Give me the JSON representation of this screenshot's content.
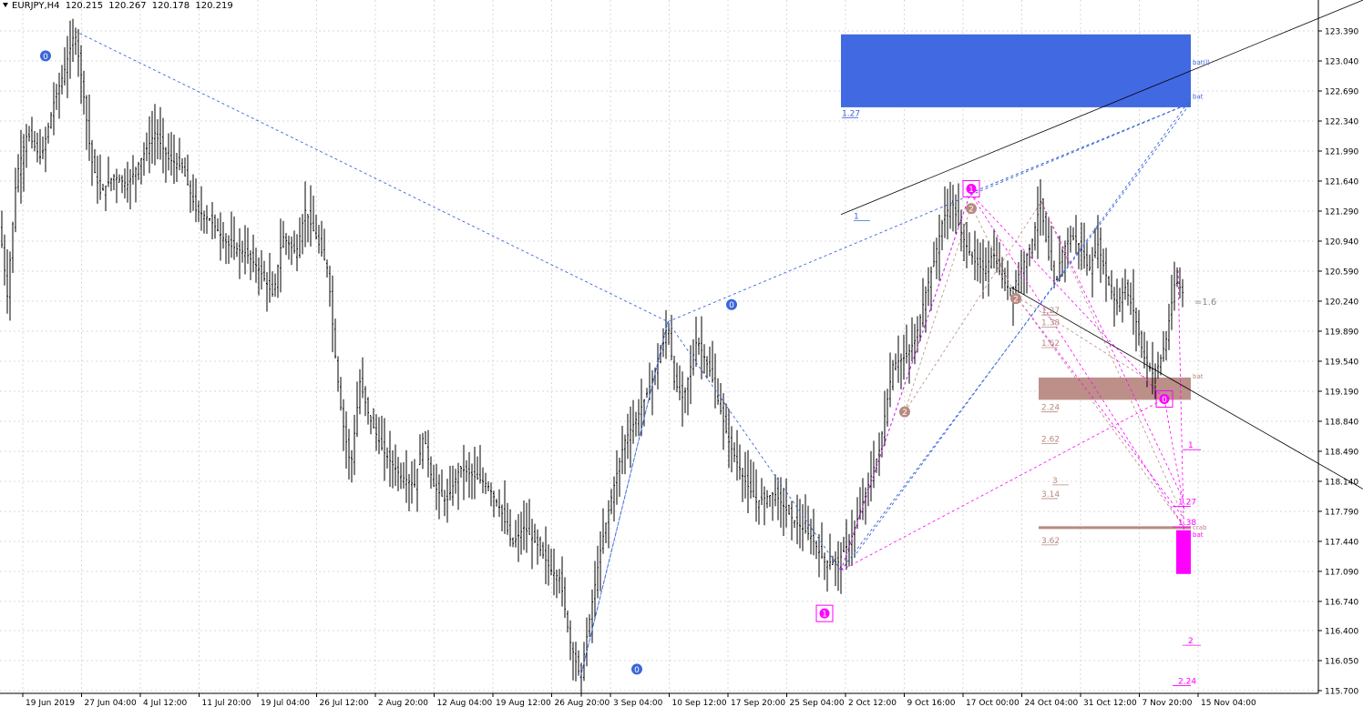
{
  "header": {
    "symbol": "EURJPY,H4",
    "open": "120.215",
    "high": "120.267",
    "low": "120.178",
    "close": "120.219"
  },
  "chart_data": {
    "type": "candlestick",
    "symbol": "EURJPY",
    "timeframe": "H4",
    "ylim": [
      115.7,
      123.5
    ],
    "price_ticks": [
      "123.390",
      "123.040",
      "122.690",
      "122.340",
      "121.990",
      "121.640",
      "121.290",
      "120.940",
      "120.590",
      "120.240",
      "119.890",
      "119.540",
      "119.190",
      "118.840",
      "118.490",
      "118.140",
      "117.790",
      "117.440",
      "117.090",
      "116.740",
      "116.400",
      "116.050",
      "115.700"
    ],
    "time_labels": [
      "19 Jun 2019",
      "27 Jun 04:00",
      "4 Jul 12:00",
      "11 Jul 20:00",
      "19 Jul 04:00",
      "26 Jul 12:00",
      "2 Aug 20:00",
      "12 Aug 04:00",
      "19 Aug 12:00",
      "26 Aug 20:00",
      "3 Sep 04:00",
      "10 Sep 12:00",
      "17 Sep 20:00",
      "25 Sep 04:00",
      "2 Oct 12:00",
      "9 Oct 16:00",
      "17 Oct 00:00",
      "24 Oct 04:00",
      "31 Oct 12:00",
      "7 Nov 20:00",
      "15 Nov 04:00"
    ],
    "price_path": [
      [
        0,
        121.1
      ],
      [
        8,
        120.3
      ],
      [
        18,
        121.7
      ],
      [
        30,
        122.2
      ],
      [
        45,
        121.9
      ],
      [
        60,
        122.6
      ],
      [
        70,
        122.9
      ],
      [
        82,
        123.39
      ],
      [
        90,
        122.8
      ],
      [
        100,
        121.9
      ],
      [
        110,
        121.5
      ],
      [
        125,
        121.7
      ],
      [
        140,
        121.6
      ],
      [
        155,
        121.9
      ],
      [
        170,
        122.2
      ],
      [
        185,
        121.9
      ],
      [
        200,
        121.8
      ],
      [
        215,
        121.3
      ],
      [
        230,
        121.2
      ],
      [
        250,
        120.9
      ],
      [
        270,
        120.8
      ],
      [
        285,
        120.6
      ],
      [
        300,
        120.3
      ],
      [
        310,
        121.0
      ],
      [
        325,
        120.8
      ],
      [
        335,
        121.3
      ],
      [
        350,
        120.9
      ],
      [
        360,
        120.6
      ],
      [
        368,
        119.6
      ],
      [
        375,
        118.9
      ],
      [
        385,
        118.3
      ],
      [
        395,
        119.3
      ],
      [
        405,
        118.9
      ],
      [
        420,
        118.5
      ],
      [
        440,
        118.2
      ],
      [
        455,
        118.1
      ],
      [
        465,
        118.7
      ],
      [
        475,
        118.1
      ],
      [
        490,
        117.9
      ],
      [
        505,
        118.3
      ],
      [
        520,
        118.2
      ],
      [
        535,
        118.1
      ],
      [
        550,
        117.8
      ],
      [
        562,
        117.4
      ],
      [
        575,
        117.6
      ],
      [
        590,
        117.4
      ],
      [
        605,
        117.1
      ],
      [
        615,
        117.0
      ],
      [
        625,
        116.3
      ],
      [
        637,
        115.85
      ],
      [
        648,
        116.6
      ],
      [
        660,
        117.4
      ],
      [
        672,
        118.0
      ],
      [
        685,
        118.6
      ],
      [
        700,
        118.9
      ],
      [
        715,
        119.3
      ],
      [
        727,
        119.7
      ],
      [
        733,
        120.0
      ],
      [
        740,
        119.3
      ],
      [
        750,
        119.1
      ],
      [
        765,
        119.8
      ],
      [
        780,
        119.4
      ],
      [
        790,
        119.0
      ],
      [
        800,
        118.6
      ],
      [
        815,
        118.2
      ],
      [
        830,
        117.9
      ],
      [
        850,
        118.0
      ],
      [
        870,
        117.7
      ],
      [
        890,
        117.5
      ],
      [
        905,
        117.2
      ],
      [
        920,
        117.2
      ],
      [
        935,
        117.5
      ],
      [
        950,
        118.0
      ],
      [
        965,
        118.5
      ],
      [
        980,
        119.5
      ],
      [
        995,
        119.6
      ],
      [
        1005,
        119.8
      ],
      [
        1015,
        120.3
      ],
      [
        1025,
        120.7
      ],
      [
        1035,
        121.2
      ],
      [
        1045,
        121.4
      ],
      [
        1053,
        121.1
      ],
      [
        1060,
        120.9
      ],
      [
        1070,
        120.7
      ],
      [
        1080,
        120.6
      ],
      [
        1090,
        120.8
      ],
      [
        1100,
        120.5
      ],
      [
        1110,
        120.35
      ],
      [
        1120,
        120.6
      ],
      [
        1132,
        120.9
      ],
      [
        1142,
        121.4
      ],
      [
        1150,
        120.8
      ],
      [
        1158,
        120.4
      ],
      [
        1165,
        120.8
      ],
      [
        1175,
        121.0
      ],
      [
        1185,
        120.9
      ],
      [
        1195,
        120.6
      ],
      [
        1205,
        120.9
      ],
      [
        1215,
        120.5
      ],
      [
        1225,
        120.2
      ],
      [
        1235,
        120.4
      ],
      [
        1245,
        120.1
      ],
      [
        1255,
        119.6
      ],
      [
        1265,
        119.4
      ],
      [
        1272,
        119.5
      ],
      [
        1280,
        119.8
      ],
      [
        1290,
        120.5
      ],
      [
        1300,
        120.3
      ]
    ],
    "blue_zigzag": [
      [
        82,
        123.39
      ],
      [
        733,
        120.0
      ],
      [
        637,
        115.85
      ],
      [
        733,
        120.0
      ],
      [
        923,
        117.1
      ],
      [
        1065,
        121.5
      ],
      [
        1307,
        122.55
      ]
    ],
    "blue_zone": {
      "x1": 923,
      "x2": 1307,
      "y1": 123.35,
      "y2": 122.5
    },
    "blue_zone_labels": [
      "bat(l)",
      "bat"
    ],
    "brown_zone": {
      "x1": 1140,
      "x2": 1307,
      "y1": 119.35,
      "y2": 119.09
    },
    "brown_zone_label": "bat",
    "brown_hline": {
      "y": 117.6,
      "label": "crab",
      "label2": "bat"
    },
    "magenta_zone": {
      "x1": 1291,
      "x2": 1307,
      "y1": 117.57,
      "y2": 117.06
    },
    "trendline_upper": [
      [
        923,
        121.25
      ],
      [
        1496,
        123.75
      ]
    ],
    "trendline_lower": [
      [
        1110,
        120.4
      ],
      [
        1496,
        118.05
      ]
    ],
    "markers": [
      {
        "label": "0",
        "x": 50,
        "y": 123.1,
        "color": "#3a66d8",
        "style": "circle"
      },
      {
        "label": "0",
        "x": 803,
        "y": 120.2,
        "color": "#3a66d8",
        "style": "circle"
      },
      {
        "label": "0",
        "x": 699,
        "y": 115.95,
        "color": "#3a66d8",
        "style": "circle"
      },
      {
        "label": "1",
        "x": 1066,
        "y": 121.55,
        "color": "#ff00ff",
        "style": "box"
      },
      {
        "label": "1",
        "x": 905,
        "y": 116.6,
        "color": "#ff00ff",
        "style": "box"
      },
      {
        "label": "2",
        "x": 1066,
        "y": 121.32,
        "color": "#b88a80",
        "style": "circle"
      },
      {
        "label": "2",
        "x": 1115,
        "y": 120.27,
        "color": "#b88a80",
        "style": "circle"
      },
      {
        "label": "2",
        "x": 993,
        "y": 118.95,
        "color": "#b88a80",
        "style": "circle"
      },
      {
        "label": "0",
        "x": 1278,
        "y": 119.1,
        "color": "#ff00ff",
        "style": "box"
      }
    ],
    "fib_blue": [
      {
        "label": "1.27",
        "x": 924,
        "y": 122.4
      },
      {
        "label": "1",
        "x": 937,
        "y": 121.2
      }
    ],
    "fib_brown": [
      {
        "label": "1.27",
        "x": 1143,
        "y": 120.1
      },
      {
        "label": "1.38",
        "x": 1143,
        "y": 119.96
      },
      {
        "label": "1.62",
        "x": 1143,
        "y": 119.72
      },
      {
        "label": "2.24",
        "x": 1143,
        "y": 118.97
      },
      {
        "label": "2.62",
        "x": 1143,
        "y": 118.6
      },
      {
        "label": "3",
        "x": 1155,
        "y": 118.12
      },
      {
        "label": "3.14",
        "x": 1143,
        "y": 117.96
      },
      {
        "label": "3.62",
        "x": 1143,
        "y": 117.42
      }
    ],
    "fib_magenta": [
      {
        "label": "1",
        "x": 1304,
        "y": 118.53
      },
      {
        "label": "1.27",
        "x": 1293,
        "y": 117.87
      },
      {
        "label": "1.38",
        "x": 1293,
        "y": 117.63
      },
      {
        "label": "2",
        "x": 1304,
        "y": 116.25
      },
      {
        "label": "2.24",
        "x": 1293,
        "y": 115.78
      }
    ],
    "price_label": "=1.6"
  }
}
